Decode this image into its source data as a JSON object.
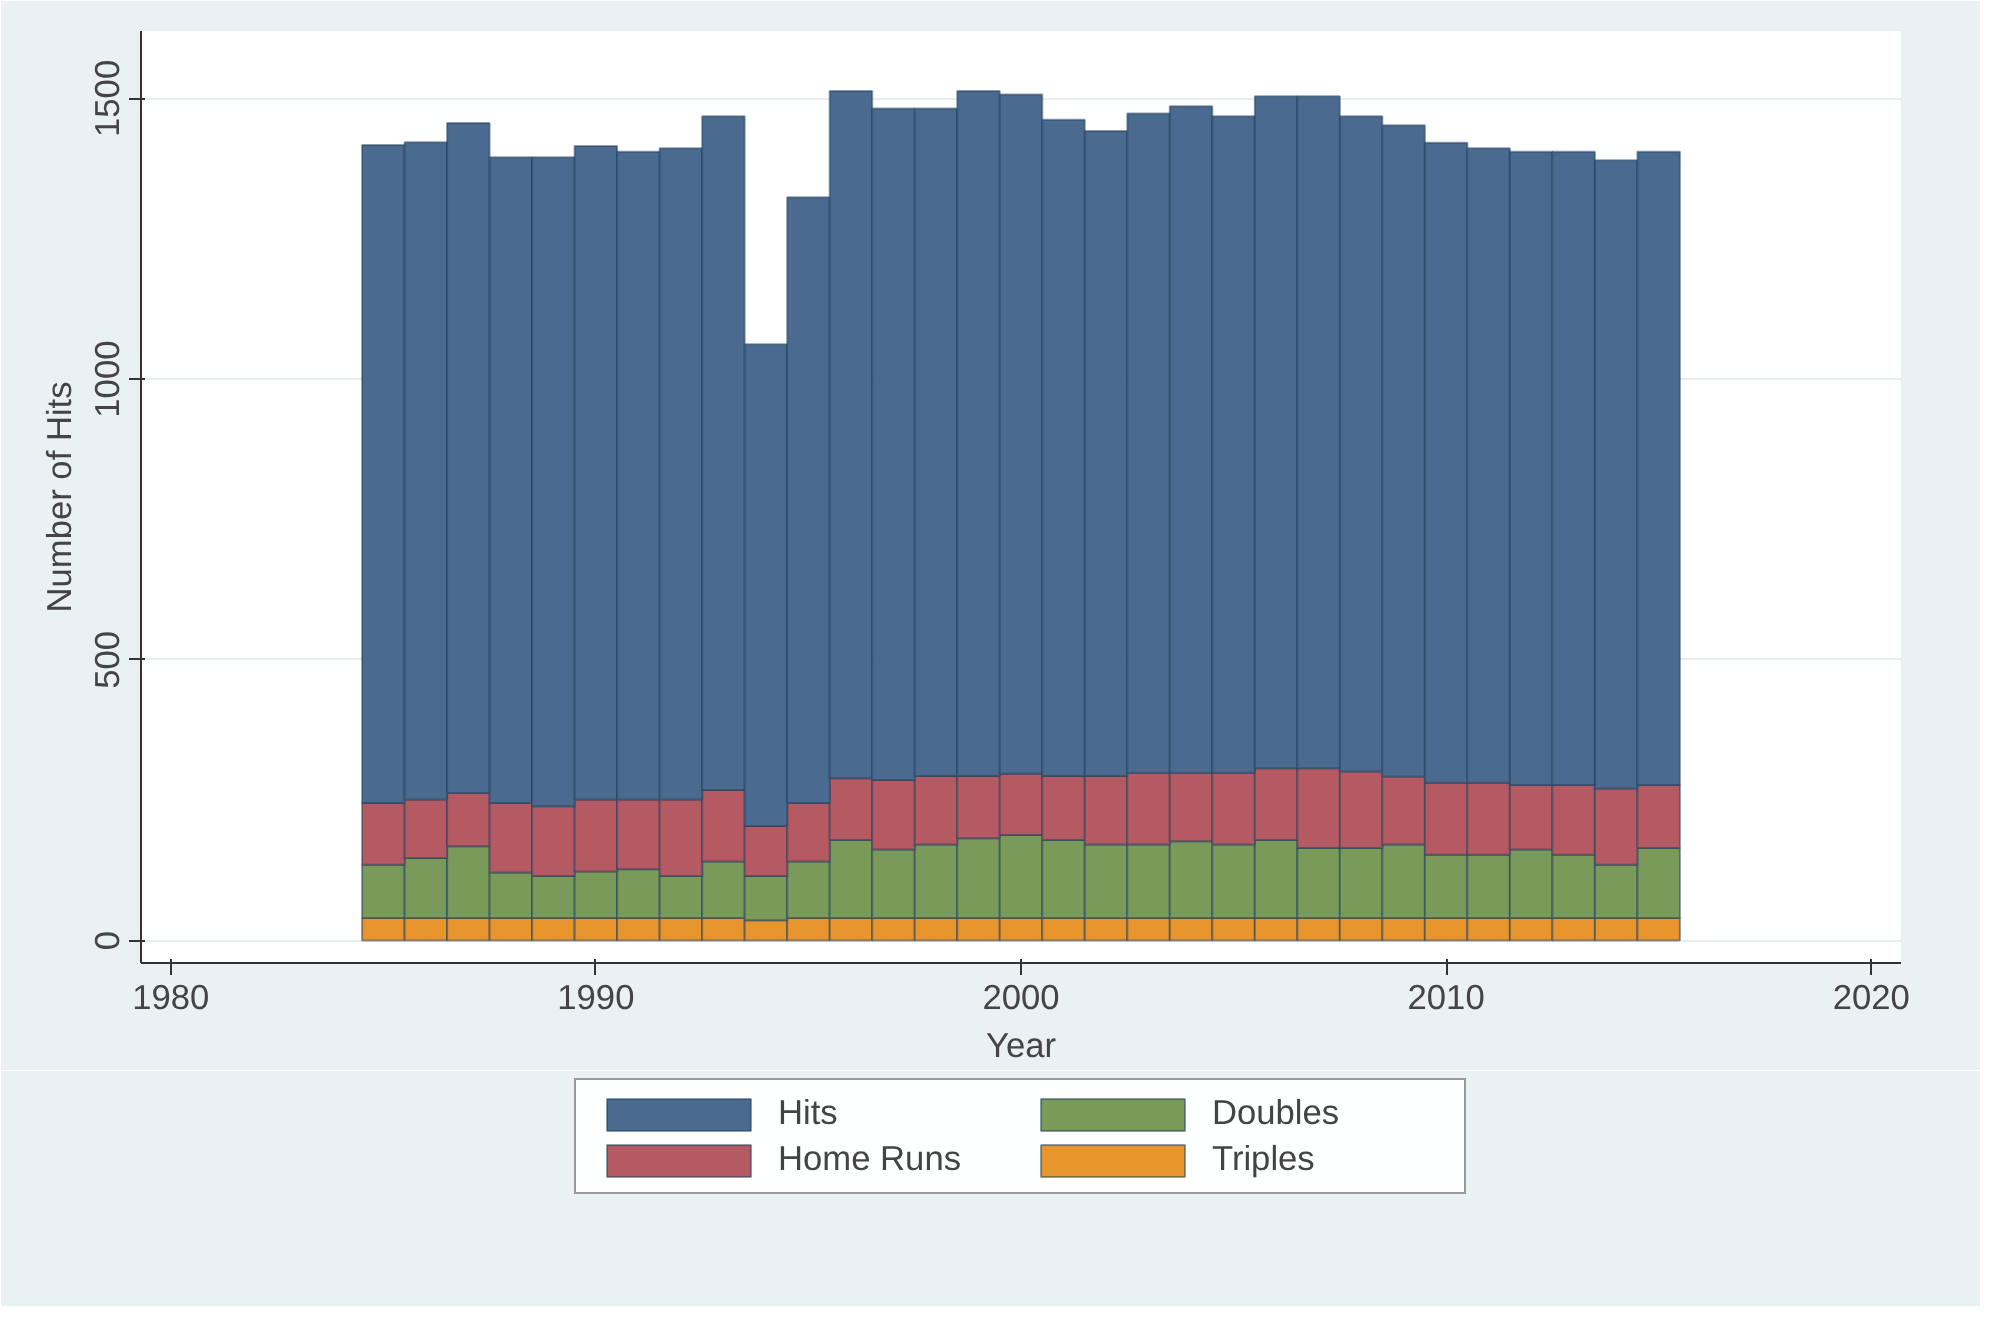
{
  "chart_data": {
    "type": "bar",
    "stacked": true,
    "xlabel": "Year",
    "ylabel": "Number of Hits",
    "x": [
      1985,
      1986,
      1987,
      1988,
      1989,
      1990,
      1991,
      1992,
      1993,
      1994,
      1995,
      1996,
      1997,
      1998,
      1999,
      2000,
      2001,
      2002,
      2003,
      2004,
      2005,
      2006,
      2007,
      2008,
      2009,
      2010,
      2011,
      2012,
      2013,
      2014,
      2015
    ],
    "series": [
      {
        "name": "Triples",
        "color": "#e8952e",
        "values": [
          40,
          40,
          40,
          40,
          40,
          40,
          40,
          40,
          40,
          36,
          40,
          40,
          40,
          40,
          40,
          40,
          40,
          40,
          40,
          40,
          40,
          40,
          40,
          40,
          40,
          40,
          40,
          40,
          40,
          40,
          40
        ]
      },
      {
        "name": "Doubles",
        "color": "#7a9a5a",
        "values": [
          95,
          107,
          128,
          81,
          75,
          83,
          87,
          75,
          101,
          79,
          101,
          139,
          122,
          131,
          142,
          148,
          139,
          131,
          131,
          137,
          131,
          139,
          125,
          125,
          131,
          113,
          113,
          122,
          113,
          95,
          125
        ]
      },
      {
        "name": "Home Runs",
        "color": "#b55a62",
        "values": [
          110,
          104,
          95,
          124,
          124,
          128,
          124,
          136,
          127,
          89,
          104,
          110,
          124,
          122,
          111,
          109,
          114,
          122,
          128,
          122,
          128,
          128,
          142,
          136,
          121,
          128,
          128,
          115,
          124,
          136,
          112
        ]
      },
      {
        "name": "Hits",
        "color": "#4a6b8f",
        "values": [
          1172,
          1171,
          1193,
          1150,
          1156,
          1164,
          1154,
          1160,
          1200,
          858,
          1079,
          1224,
          1196,
          1189,
          1220,
          1210,
          1169,
          1149,
          1174,
          1187,
          1169,
          1197,
          1197,
          1167,
          1160,
          1140,
          1130,
          1128,
          1128,
          1119,
          1128
        ]
      }
    ],
    "xlim": [
      1979.3,
      2020.7
    ],
    "xticks": [
      1980,
      1990,
      2000,
      2010,
      2020
    ],
    "ylim": [
      -40,
      1620
    ],
    "yticks": [
      0,
      500,
      1000,
      1500
    ],
    "grid": "y",
    "legend": "bottom"
  }
}
